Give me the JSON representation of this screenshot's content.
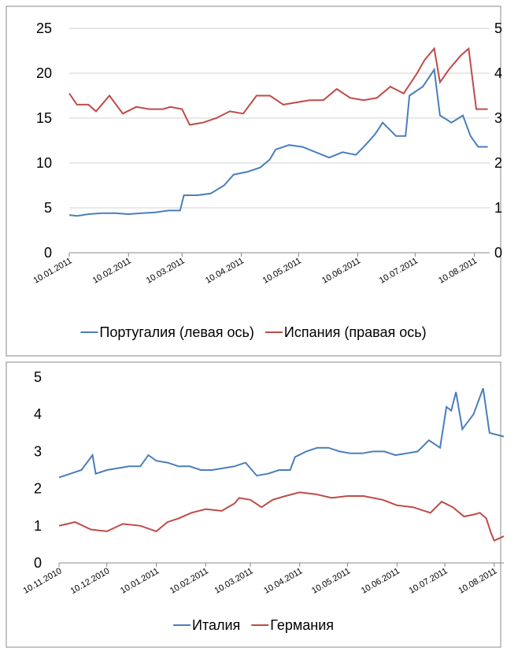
{
  "chart_data": [
    {
      "type": "line",
      "xlim": [
        "10.01.2011",
        "18.08.2011"
      ],
      "xticks": [
        "10.01.2011",
        "10.02.2011",
        "10.03.2011",
        "10.04.2011",
        "10.05.2011",
        "10.06.2011",
        "10.07.2011",
        "10.08.2011"
      ],
      "ylim": [
        0,
        25
      ],
      "yticks": [
        0,
        5,
        10,
        15,
        20,
        25
      ],
      "y2lim": [
        0,
        5
      ],
      "y2ticks": [
        0,
        1,
        2,
        3,
        4,
        5
      ],
      "grid": true,
      "series": [
        {
          "name": "Португалия (левая ось)",
          "color": "#4a7ebb",
          "x": [
            "10.01.2011",
            "14.01.2011",
            "20.01.2011",
            "27.01.2011",
            "03.02.2011",
            "10.02.2011",
            "17.02.2011",
            "24.02.2011",
            "03.03.2011",
            "09.03.2011",
            "11.03.2011",
            "18.03.2011",
            "25.03.2011",
            "01.04.2011",
            "06.04.2011",
            "13.04.2011",
            "20.04.2011",
            "25.04.2011",
            "28.04.2011",
            "05.05.2011",
            "12.05.2011",
            "19.05.2011",
            "26.05.2011",
            "02.06.2011",
            "09.06.2011",
            "14.06.2011",
            "19.06.2011",
            "23.06.2011",
            "30.06.2011",
            "05.07.2011",
            "07.07.2011",
            "14.07.2011",
            "20.07.2011",
            "23.07.2011",
            "29.07.2011",
            "04.08.2011",
            "08.08.2011",
            "12.08.2011",
            "17.08.2011"
          ],
          "values": [
            4.2,
            4.1,
            4.3,
            4.4,
            4.4,
            4.3,
            4.4,
            4.5,
            4.7,
            4.7,
            6.4,
            6.4,
            6.6,
            7.5,
            8.7,
            9.0,
            9.5,
            10.4,
            11.5,
            12.0,
            11.8,
            11.2,
            10.6,
            11.2,
            10.9,
            12.0,
            13.2,
            14.5,
            13.0,
            13.0,
            17.5,
            18.5,
            20.4,
            15.3,
            14.5,
            15.3,
            13.0,
            11.8,
            11.8
          ]
        },
        {
          "name": "Испания (правая ось)",
          "color": "#be4b48",
          "axis": "y2",
          "x": [
            "10.01.2011",
            "14.01.2011",
            "20.01.2011",
            "24.01.2011",
            "31.01.2011",
            "07.02.2011",
            "14.02.2011",
            "21.02.2011",
            "28.02.2011",
            "04.03.2011",
            "10.03.2011",
            "14.03.2011",
            "21.03.2011",
            "28.03.2011",
            "04.04.2011",
            "11.04.2011",
            "18.04.2011",
            "25.04.2011",
            "02.05.2011",
            "09.05.2011",
            "16.05.2011",
            "23.05.2011",
            "30.05.2011",
            "06.06.2011",
            "13.06.2011",
            "20.06.2011",
            "27.06.2011",
            "04.07.2011",
            "11.07.2011",
            "15.07.2011",
            "20.07.2011",
            "23.07.2011",
            "28.07.2011",
            "03.08.2011",
            "07.08.2011",
            "11.08.2011",
            "17.08.2011"
          ],
          "values": [
            3.55,
            3.3,
            3.3,
            3.15,
            3.5,
            3.1,
            3.25,
            3.2,
            3.2,
            3.25,
            3.2,
            2.85,
            2.9,
            3.0,
            3.15,
            3.1,
            3.5,
            3.5,
            3.3,
            3.35,
            3.4,
            3.4,
            3.65,
            3.45,
            3.4,
            3.45,
            3.7,
            3.55,
            4.0,
            4.3,
            4.55,
            3.8,
            4.1,
            4.4,
            4.55,
            3.2,
            3.2
          ]
        }
      ]
    },
    {
      "type": "line",
      "xlim": [
        "10.11.2010",
        "16.08.2011"
      ],
      "xticks": [
        "10.11.2010",
        "10.12.2010",
        "10.01.2011",
        "10.02.2011",
        "10.03.2011",
        "10.04.2011",
        "10.05.2011",
        "10.06.2011",
        "10.07.2011",
        "10.08.2011"
      ],
      "ylim": [
        0,
        5
      ],
      "yticks": [
        0,
        1,
        2,
        3,
        4,
        5
      ],
      "grid": false,
      "series": [
        {
          "name": "Италия",
          "color": "#4a7ebb",
          "x": [
            "10.11.2010",
            "17.11.2010",
            "24.11.2010",
            "01.12.2010",
            "03.12.2010",
            "10.12.2010",
            "17.12.2010",
            "24.12.2010",
            "31.12.2010",
            "05.01.2011",
            "10.01.2011",
            "17.01.2011",
            "24.01.2011",
            "31.01.2011",
            "07.02.2011",
            "14.02.2011",
            "21.02.2011",
            "28.02.2011",
            "07.03.2011",
            "14.03.2011",
            "21.03.2011",
            "28.03.2011",
            "04.04.2011",
            "07.04.2011",
            "14.04.2011",
            "21.04.2011",
            "28.04.2011",
            "05.05.2011",
            "12.05.2011",
            "19.05.2011",
            "26.05.2011",
            "02.06.2011",
            "09.06.2011",
            "16.06.2011",
            "23.06.2011",
            "30.06.2011",
            "07.07.2011",
            "11.07.2011",
            "14.07.2011",
            "17.07.2011",
            "21.07.2011",
            "28.07.2011",
            "03.08.2011",
            "07.08.2011",
            "16.08.2011"
          ],
          "values": [
            2.3,
            2.4,
            2.5,
            2.9,
            2.4,
            2.5,
            2.55,
            2.6,
            2.6,
            2.9,
            2.75,
            2.7,
            2.6,
            2.6,
            2.5,
            2.5,
            2.55,
            2.6,
            2.7,
            2.35,
            2.4,
            2.5,
            2.5,
            2.85,
            3.0,
            3.1,
            3.1,
            3.0,
            2.95,
            2.95,
            3.0,
            3.0,
            2.9,
            2.95,
            3.0,
            3.3,
            3.1,
            4.2,
            4.1,
            4.6,
            3.6,
            4.0,
            4.7,
            3.5,
            3.4
          ]
        },
        {
          "name": "Германия",
          "color": "#be4b48",
          "x": [
            "10.11.2010",
            "20.11.2010",
            "30.11.2010",
            "10.12.2010",
            "20.12.2010",
            "31.12.2010",
            "10.01.2011",
            "17.01.2011",
            "24.01.2011",
            "01.02.2011",
            "10.02.2011",
            "20.02.2011",
            "28.02.2011",
            "03.03.2011",
            "10.03.2011",
            "17.03.2011",
            "24.03.2011",
            "01.04.2011",
            "10.04.2011",
            "20.04.2011",
            "30.04.2011",
            "10.05.2011",
            "20.05.2011",
            "01.06.2011",
            "10.06.2011",
            "20.06.2011",
            "01.07.2011",
            "08.07.2011",
            "15.07.2011",
            "22.07.2011",
            "28.07.2011",
            "01.08.2011",
            "05.08.2011",
            "08.08.2011",
            "10.08.2011",
            "16.08.2011"
          ],
          "values": [
            1.0,
            1.1,
            0.9,
            0.85,
            1.05,
            1.0,
            0.85,
            1.1,
            1.2,
            1.35,
            1.45,
            1.4,
            1.6,
            1.75,
            1.7,
            1.5,
            1.7,
            1.8,
            1.9,
            1.85,
            1.75,
            1.8,
            1.8,
            1.7,
            1.55,
            1.5,
            1.35,
            1.65,
            1.5,
            1.25,
            1.3,
            1.35,
            1.2,
            0.8,
            0.6,
            0.72
          ]
        }
      ]
    }
  ]
}
